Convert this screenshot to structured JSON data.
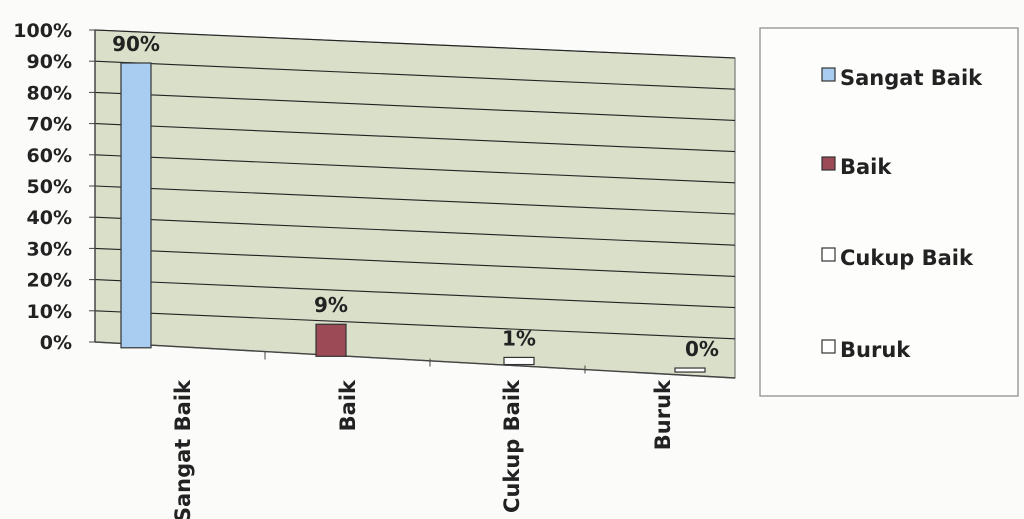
{
  "chart_data": {
    "type": "bar",
    "title": "",
    "xlabel": "",
    "ylabel": "",
    "categories": [
      "Sangat Baik",
      "Baik",
      "Cukup Baik",
      "Buruk"
    ],
    "values": [
      90,
      9,
      1,
      0
    ],
    "data_labels": [
      "90%",
      "9%",
      "1%",
      "0%"
    ],
    "y_ticks": [
      "0%",
      "10%",
      "20%",
      "30%",
      "40%",
      "50%",
      "60%",
      "70%",
      "80%",
      "90%",
      "100%"
    ],
    "ylim": [
      0,
      100
    ],
    "grid": true,
    "legend_position": "right",
    "legend": [
      {
        "label": "Sangat Baik",
        "color": "#a9cdf0"
      },
      {
        "label": "Baik",
        "color": "#9c4a55"
      },
      {
        "label": "Cukup Baik",
        "color": "#ffffff"
      },
      {
        "label": "Buruk",
        "color": "#ffffff"
      }
    ],
    "colors": [
      "#a9cdf0",
      "#9c4a55",
      "#ffffff",
      "#ffffff"
    ],
    "plot_background": "#d9dfc9"
  }
}
